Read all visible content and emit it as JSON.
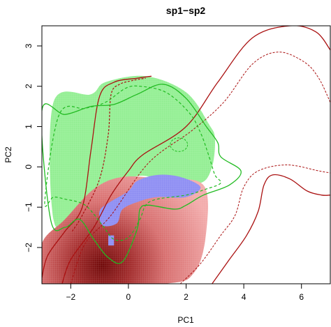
{
  "chart_data": {
    "type": "heatmap",
    "title": "sp1−sp2",
    "xlabel": "PC1",
    "ylabel": "PC2",
    "xlim": [
      -3,
      7
    ],
    "ylim": [
      -2.9,
      3.5
    ],
    "x_ticks": [
      -2,
      0,
      2,
      4,
      6
    ],
    "x_tick_labels": [
      "−2",
      "0",
      "2",
      "4",
      "6"
    ],
    "y_ticks": [
      -2,
      -1,
      0,
      1,
      2,
      3
    ],
    "y_tick_labels": [
      "−2",
      "−1",
      "0",
      "1",
      "2",
      "3"
    ],
    "grid": false,
    "legend": "none",
    "colors": {
      "sp1_niche": "#90ee90",
      "sp2_niche": "#ffaaaa",
      "overlap": "#8a8af2",
      "density_peak": "#6b0000",
      "sp1_contour": "#22bb22",
      "sp2_contour": "#aa1111"
    },
    "regions": {
      "sp1_niche": [
        [
          -2.6,
          -1.3
        ],
        [
          -2.6,
          1.6
        ],
        [
          -1.3,
          1.8
        ],
        [
          -0.8,
          2.1
        ],
        [
          0.6,
          2.25
        ],
        [
          2.0,
          1.85
        ],
        [
          2.8,
          1.05
        ],
        [
          3.0,
          0.7
        ],
        [
          2.9,
          0.0
        ],
        [
          2.5,
          -0.4
        ],
        [
          1.4,
          -0.35
        ],
        [
          0.2,
          -0.25
        ],
        [
          -0.7,
          -0.95
        ],
        [
          -1.8,
          -1.4
        ]
      ],
      "sp2_niche": [
        [
          -3.0,
          -2.9
        ],
        [
          -3.0,
          -1.9
        ],
        [
          -2.2,
          -1.3
        ],
        [
          -1.2,
          -0.55
        ],
        [
          -0.2,
          -0.25
        ],
        [
          1.2,
          -0.3
        ],
        [
          2.6,
          -0.45
        ],
        [
          2.7,
          -1.6
        ],
        [
          2.3,
          -2.6
        ],
        [
          1.2,
          -2.9
        ]
      ],
      "overlap": [
        [
          0.3,
          -0.35
        ],
        [
          1.0,
          -0.2
        ],
        [
          1.8,
          -0.25
        ],
        [
          2.5,
          -0.5
        ],
        [
          2.0,
          -0.75
        ],
        [
          1.0,
          -0.75
        ],
        [
          0.4,
          -0.85
        ],
        [
          -0.2,
          -1.05
        ],
        [
          -0.4,
          -1.4
        ],
        [
          -0.9,
          -1.45
        ],
        [
          -1.0,
          -1.1
        ],
        [
          -0.7,
          -0.9
        ],
        [
          0.0,
          -0.6
        ]
      ],
      "overlap_patch": [
        [
          -0.7,
          -1.7
        ],
        [
          -0.5,
          -1.7
        ],
        [
          -0.5,
          -1.95
        ],
        [
          -0.7,
          -1.95
        ]
      ]
    },
    "density_peak": [
      -0.9,
      -2.45
    ],
    "contours": {
      "sp2_outer": [
        [
          -2.3,
          -2.9
        ],
        [
          -2.0,
          -2.3
        ],
        [
          -1.2,
          -1.5
        ],
        [
          -0.6,
          -0.7
        ],
        [
          0.0,
          -0.1
        ],
        [
          0.5,
          0.3
        ],
        [
          2.0,
          1.0
        ],
        [
          3.1,
          2.1
        ],
        [
          4.3,
          3.2
        ],
        [
          5.6,
          3.5
        ],
        [
          6.5,
          3.35
        ],
        [
          7.0,
          2.9
        ]
      ],
      "sp2_outer_lower": [
        [
          2.9,
          -2.9
        ],
        [
          3.5,
          -2.3
        ],
        [
          4.1,
          -1.7
        ],
        [
          4.5,
          -1.1
        ],
        [
          4.7,
          -0.45
        ],
        [
          5.0,
          -0.2
        ],
        [
          5.6,
          -0.3
        ],
        [
          6.2,
          -0.6
        ],
        [
          6.7,
          -0.7
        ],
        [
          7.0,
          -0.7
        ]
      ],
      "sp2_inner": [
        [
          -2.0,
          -2.9
        ],
        [
          -1.5,
          -1.9
        ],
        [
          -0.6,
          -1.2
        ],
        [
          0.7,
          0.1
        ],
        [
          2.2,
          0.9
        ],
        [
          3.3,
          1.6
        ],
        [
          4.3,
          2.55
        ],
        [
          5.2,
          2.85
        ],
        [
          6.1,
          2.6
        ],
        [
          6.6,
          2.2
        ],
        [
          7.0,
          1.6
        ]
      ],
      "sp2_inner_lower": [
        [
          1.8,
          -2.9
        ],
        [
          2.5,
          -2.4
        ],
        [
          3.2,
          -1.7
        ],
        [
          3.7,
          -1.2
        ],
        [
          4.0,
          -0.5
        ],
        [
          4.5,
          -0.1
        ],
        [
          5.5,
          0.05
        ],
        [
          6.6,
          -0.1
        ],
        [
          7.0,
          -0.15
        ]
      ],
      "sp2_secondary": [
        [
          -3.0,
          -2.75
        ],
        [
          -2.8,
          -2.2
        ],
        [
          -2.2,
          -1.6
        ],
        [
          -1.6,
          -1.0
        ],
        [
          -1.3,
          0.4
        ],
        [
          -1.0,
          1.75
        ],
        [
          -0.5,
          2.1
        ],
        [
          0.3,
          2.2
        ],
        [
          0.8,
          2.25
        ]
      ],
      "sp2_secondary_dashed": [
        [
          -1.95,
          -1.6
        ],
        [
          -1.6,
          -1.2
        ],
        [
          -1.0,
          -0.3
        ],
        [
          -0.7,
          0.8
        ],
        [
          -0.6,
          1.8
        ],
        [
          -0.3,
          2.05
        ],
        [
          0.2,
          2.15
        ],
        [
          0.6,
          2.2
        ]
      ],
      "sp1_outer": [
        [
          -3.0,
          1.4
        ],
        [
          -2.2,
          1.3
        ],
        [
          -1.3,
          1.5
        ],
        [
          -0.5,
          1.55
        ],
        [
          0.3,
          1.8
        ],
        [
          1.2,
          2.05
        ],
        [
          2.0,
          1.7
        ],
        [
          2.7,
          1.0
        ],
        [
          3.1,
          0.6
        ],
        [
          3.2,
          0.25
        ],
        [
          3.9,
          -0.1
        ],
        [
          3.5,
          -0.45
        ],
        [
          2.6,
          -0.7
        ],
        [
          2.0,
          -0.95
        ],
        [
          1.6,
          -1.05
        ],
        [
          0.7,
          -0.95
        ],
        [
          0.4,
          -1.05
        ],
        [
          0.3,
          -1.55
        ],
        [
          -0.2,
          -2.35
        ],
        [
          -0.7,
          -2.25
        ],
        [
          -1.2,
          -1.8
        ],
        [
          -1.7,
          -1.3
        ],
        [
          -2.2,
          -1.5
        ],
        [
          -2.7,
          -1.3
        ]
      ],
      "sp1_inner": [
        [
          -2.9,
          -0.85
        ],
        [
          -2.6,
          -0.75
        ],
        [
          -2.2,
          -0.8
        ],
        [
          -1.5,
          -0.95
        ],
        [
          -0.9,
          -1.45
        ],
        [
          -0.5,
          -1.8
        ],
        [
          0.0,
          -1.75
        ],
        [
          0.4,
          -1.3
        ],
        [
          0.6,
          -0.95
        ],
        [
          1.0,
          -0.8
        ],
        [
          2.0,
          -0.7
        ],
        [
          2.7,
          -0.55
        ],
        [
          3.2,
          -0.4
        ],
        [
          3.0,
          -0.2
        ],
        [
          2.8,
          0.25
        ],
        [
          2.5,
          0.85
        ],
        [
          2.1,
          1.35
        ],
        [
          1.3,
          1.85
        ],
        [
          0.4,
          2.0
        ],
        [
          -0.1,
          1.95
        ],
        [
          -0.8,
          1.6
        ],
        [
          -1.5,
          1.45
        ],
        [
          -2.4,
          1.3
        ]
      ],
      "sp1_small_ellipse": {
        "cx": 1.75,
        "cy": 0.55,
        "rx": 0.3,
        "ry": 0.17
      }
    }
  }
}
